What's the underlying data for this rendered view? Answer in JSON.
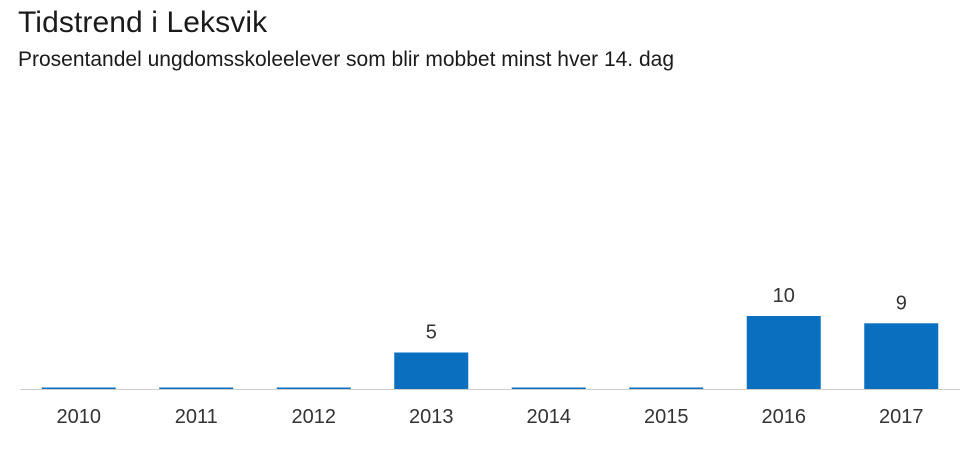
{
  "title": "Tidstrend i Leksvik",
  "subtitle": "Prosentandel ungdomsskoleelever som blir mobbet minst hver 14. dag",
  "colors": {
    "bar": "#0a6fbf",
    "axis": "#cfcfcf",
    "text": "#333333"
  },
  "chart_data": {
    "type": "bar",
    "title": "Tidstrend i Leksvik",
    "subtitle": "Prosentandel ungdomsskoleelever som blir mobbet minst hver 14. dag",
    "xlabel": "",
    "ylabel": "",
    "categories": [
      "2010",
      "2011",
      "2012",
      "2013",
      "2014",
      "2015",
      "2016",
      "2017"
    ],
    "values": [
      0,
      0,
      0,
      5,
      0,
      0,
      10,
      9
    ],
    "data_labels": [
      "",
      "",
      "",
      "5",
      "",
      "",
      "10",
      "9"
    ],
    "ylim": [
      0,
      10
    ],
    "grid": false,
    "legend": "none"
  }
}
